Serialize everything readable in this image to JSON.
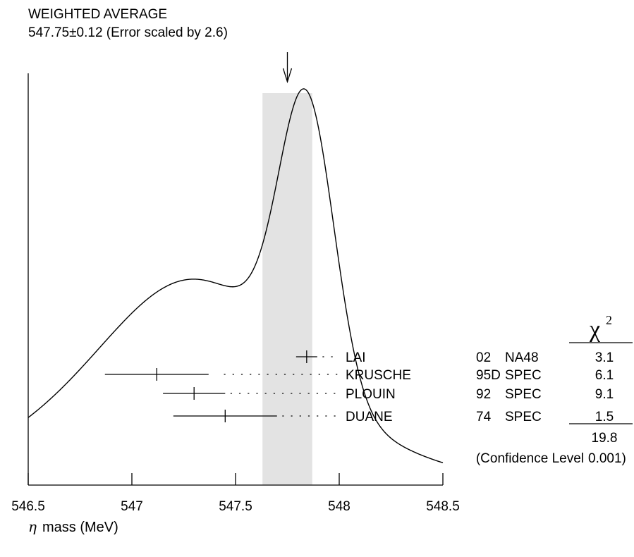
{
  "chart_data": {
    "type": "ideogram",
    "title_line1": "WEIGHTED AVERAGE",
    "title_line2": "547.75±0.12 (Error scaled by 2.6)",
    "x_range": [
      546.5,
      548.5
    ],
    "x_ticks": [
      546.5,
      547,
      547.5,
      548,
      548.5
    ],
    "x_tick_labels": [
      "546.5",
      "547",
      "547.5",
      "548",
      "548.5"
    ],
    "xlabel_symbol": "η",
    "xlabel_text": "mass (MeV)",
    "weighted_average": 547.75,
    "average_band": [
      547.63,
      547.87
    ],
    "chi2_symbol": "χ",
    "chi2_exp": "2",
    "measurements": [
      {
        "name": "LAI",
        "year": "02",
        "tech": "NA48",
        "value": 547.843,
        "error": 0.051,
        "chi2": "3.1"
      },
      {
        "name": "KRUSCHE",
        "year": "95D",
        "tech": "SPEC",
        "value": 547.12,
        "error": 0.25,
        "chi2": "6.1"
      },
      {
        "name": "PLOUIN",
        "year": "92",
        "tech": "SPEC",
        "value": 547.3,
        "error": 0.15,
        "chi2": "9.1"
      },
      {
        "name": "DUANE",
        "year": "74",
        "tech": "SPEC",
        "value": 547.45,
        "error": 0.25,
        "chi2": "1.5"
      }
    ],
    "chi2_total": "19.8",
    "confidence_label": "(Confidence Level",
    "confidence_value": "0.001)"
  }
}
